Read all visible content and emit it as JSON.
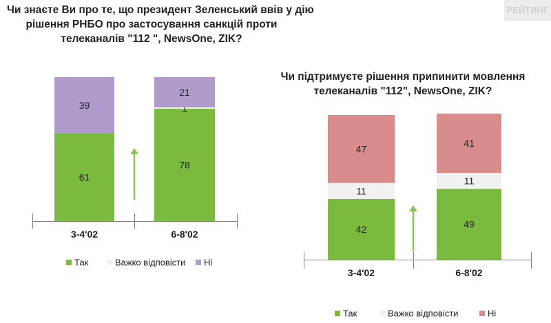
{
  "watermark": "РЕЙТИНГ",
  "colors": {
    "yes": "#7aba3f",
    "hard": "#f1f1f1",
    "no_left": "#b09ccc",
    "no_right": "#d98c8c",
    "arrow": "#8ac455",
    "axis": "#7f7f7f",
    "text": "#222222"
  },
  "chart_data": [
    {
      "type": "bar",
      "stacked": true,
      "title_lines": [
        "Чи знаєте Ви про те, що президент Зеленський ввів у дію",
        "рішення РНБО про застосування санкцій проти",
        "телеканалів \"112 \", NewsOne, ZIK?"
      ],
      "categories": [
        "3-4'02",
        "6-8'02"
      ],
      "series": [
        {
          "name": "Так",
          "key": "yes",
          "values": [
            61,
            78
          ]
        },
        {
          "name": "Важко відповісти",
          "key": "hard",
          "values": [
            0,
            1
          ]
        },
        {
          "name": "Ні",
          "key": "no",
          "values": [
            39,
            21
          ]
        }
      ],
      "ylim": [
        0,
        100
      ],
      "legend": "bottom",
      "annotation": "upward arrow between bars"
    },
    {
      "type": "bar",
      "stacked": true,
      "title_lines": [
        "Чи підтримуєте рішення припинити мовлення",
        "телеканалів \"112\", NewsOne, ZIK?"
      ],
      "categories": [
        "3-4'02",
        "6-8'02"
      ],
      "series": [
        {
          "name": "Так",
          "key": "yes",
          "values": [
            42,
            49
          ]
        },
        {
          "name": "Важко відповісти",
          "key": "hard",
          "values": [
            11,
            11
          ]
        },
        {
          "name": "Ні",
          "key": "no",
          "values": [
            47,
            41
          ]
        }
      ],
      "ylim": [
        0,
        100
      ],
      "legend": "bottom",
      "annotation": "upward arrow between bars"
    }
  ]
}
